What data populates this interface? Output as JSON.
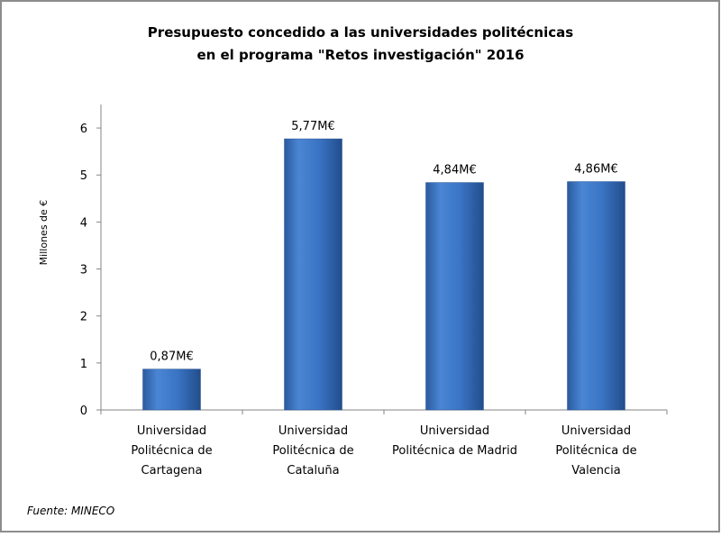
{
  "chart_data": {
    "type": "bar",
    "title_lines": [
      "Presupuesto concedido a las universidades politécnicas",
      "en el programa \"Retos investigación\" 2016"
    ],
    "ylabel": "Millones de €",
    "xlabel": "",
    "ylim": [
      0,
      6.5
    ],
    "yticks": [
      "0",
      "1",
      "2",
      "3",
      "4",
      "5",
      "6"
    ],
    "categories": [
      [
        "Universidad",
        "Politécnica de",
        "Cartagena"
      ],
      [
        "Universidad",
        "Politécnica de",
        "Cataluña"
      ],
      [
        "Universidad",
        "Politécnica de Madrid"
      ],
      [
        "Universidad",
        "Politécnica de",
        "Valencia"
      ]
    ],
    "values": [
      0.87,
      5.77,
      4.84,
      4.86
    ],
    "data_labels": [
      "0,87M€",
      "5,77M€",
      "4,84M€",
      "4,86M€"
    ],
    "bar_color": "#3a74c4",
    "grid": false,
    "legend": "none",
    "source": "Fuente: MINECO"
  }
}
